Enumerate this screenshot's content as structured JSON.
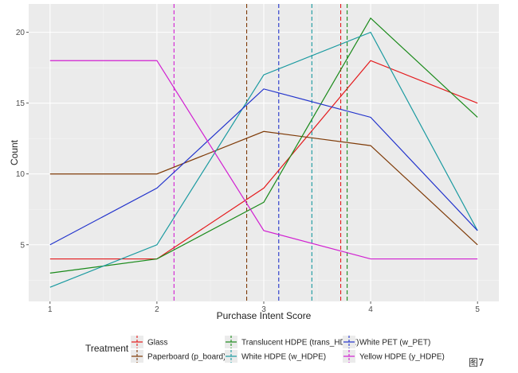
{
  "chart_data": {
    "type": "line",
    "xlabel": "Purchase Intent Score",
    "ylabel": "Count",
    "xlim": [
      0.8,
      5.2
    ],
    "ylim": [
      1.0,
      22.0
    ],
    "x_ticks": [
      1,
      2,
      3,
      4,
      5
    ],
    "y_ticks": [
      5,
      10,
      15,
      20
    ],
    "grid": true,
    "background": "#ebebeb",
    "legend_title": "Treatment",
    "legend_position": "bottom",
    "series": [
      {
        "name": "Glass",
        "color": "#e41a1c",
        "x": [
          1,
          2,
          3,
          4,
          5
        ],
        "values": [
          4,
          4,
          9,
          18,
          15
        ],
        "mean": 3.72
      },
      {
        "name": "Paperboard (p_board)",
        "color": "#7f3b08",
        "x": [
          1,
          2,
          3,
          4,
          5
        ],
        "values": [
          10,
          10,
          13,
          12,
          5
        ],
        "mean": 2.84
      },
      {
        "name": "Translucent HDPE (trans_HDPE)",
        "color": "#1a8a1a",
        "x": [
          1,
          2,
          3,
          4,
          5
        ],
        "values": [
          3,
          4,
          8,
          21,
          14
        ],
        "mean": 3.78
      },
      {
        "name": "White HDPE (w_HDPE)",
        "color": "#1a9aa0",
        "x": [
          1,
          2,
          3,
          4,
          5
        ],
        "values": [
          2,
          5,
          17,
          20,
          6
        ],
        "mean": 3.45
      },
      {
        "name": "White PET (w_PET)",
        "color": "#2233cc",
        "x": [
          1,
          2,
          3,
          4,
          5
        ],
        "values": [
          5,
          9,
          16,
          14,
          6
        ],
        "mean": 3.14
      },
      {
        "name": "Yellow HDPE (y_HDPE)",
        "color": "#d11fd1",
        "x": [
          1,
          2,
          3,
          4,
          5
        ],
        "values": [
          18,
          18,
          6,
          4,
          4
        ],
        "mean": 2.16
      }
    ]
  },
  "caption": "图7"
}
